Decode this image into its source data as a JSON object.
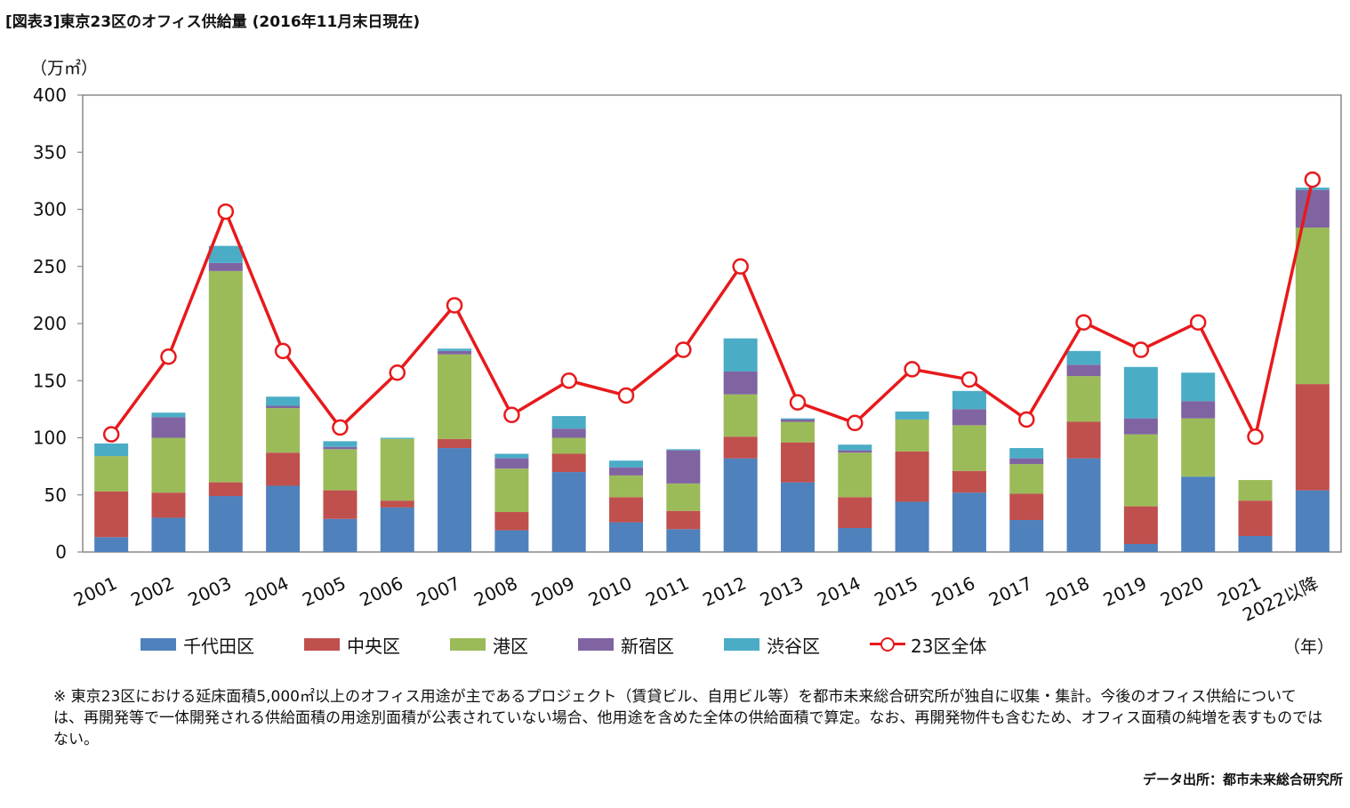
{
  "title": "[図表3]東京23区のオフィス供給量 (2016年11月末日現在)",
  "unit_label": "（万㎡）",
  "year_label": "（年）",
  "note": "※ 東京23区における延床面積5,000㎡以上のオフィス用途が主であるプロジェクト（賃貸ビル、自用ビル等）を都市未来総合研究所が独自に収集・集計。今後のオフィス供給については、再開発等で一体開発される供給面積の用途別面積が公表されていない場合、他用途を含めた全体の供給面積で算定。なお、再開発物件も含むため、オフィス面積の純増を表すものではない。",
  "source": "データ出所：都市未来総合研究所",
  "chart_data": {
    "type": "bar",
    "stacked": true,
    "categories": [
      "2001",
      "2002",
      "2003",
      "2004",
      "2005",
      "2006",
      "2007",
      "2008",
      "2009",
      "2010",
      "2011",
      "2012",
      "2013",
      "2014",
      "2015",
      "2016",
      "2017",
      "2018",
      "2019",
      "2020",
      "2021",
      "2022以降"
    ],
    "ylim": [
      0,
      400
    ],
    "yticks": [
      0,
      50,
      100,
      150,
      200,
      250,
      300,
      350,
      400
    ],
    "legend_position": "bottom",
    "series": [
      {
        "name": "千代田区",
        "color": "#4f81bd",
        "values": [
          13,
          30,
          49,
          58,
          29,
          39,
          91,
          19,
          70,
          26,
          20,
          82,
          61,
          21,
          44,
          52,
          28,
          82,
          7,
          66,
          14,
          54
        ]
      },
      {
        "name": "中央区",
        "color": "#c0504d",
        "values": [
          40,
          22,
          12,
          29,
          25,
          6,
          8,
          16,
          16,
          22,
          16,
          19,
          35,
          27,
          44,
          19,
          23,
          32,
          33,
          0,
          31,
          93
        ]
      },
      {
        "name": "港区",
        "color": "#9bbb59",
        "values": [
          31,
          48,
          185,
          39,
          36,
          54,
          74,
          38,
          14,
          19,
          24,
          37,
          18,
          39,
          28,
          40,
          26,
          40,
          63,
          51,
          18,
          137
        ]
      },
      {
        "name": "新宿区",
        "color": "#8064a2",
        "values": [
          0,
          18,
          7,
          2,
          2,
          0,
          3,
          9,
          8,
          7,
          29,
          20,
          2,
          2,
          0,
          14,
          5,
          10,
          14,
          15,
          0,
          33
        ]
      },
      {
        "name": "渋谷区",
        "color": "#4bacc6",
        "values": [
          11,
          4,
          15,
          8,
          5,
          1,
          2,
          4,
          11,
          6,
          1,
          29,
          1,
          5,
          7,
          16,
          9,
          12,
          45,
          25,
          0,
          2
        ]
      }
    ],
    "line": {
      "name": "23区全体",
      "color": "#e8191b",
      "values": [
        103,
        171,
        298,
        176,
        109,
        157,
        216,
        120,
        150,
        137,
        177,
        250,
        131,
        113,
        160,
        151,
        116,
        201,
        177,
        201,
        101,
        326
      ]
    }
  }
}
